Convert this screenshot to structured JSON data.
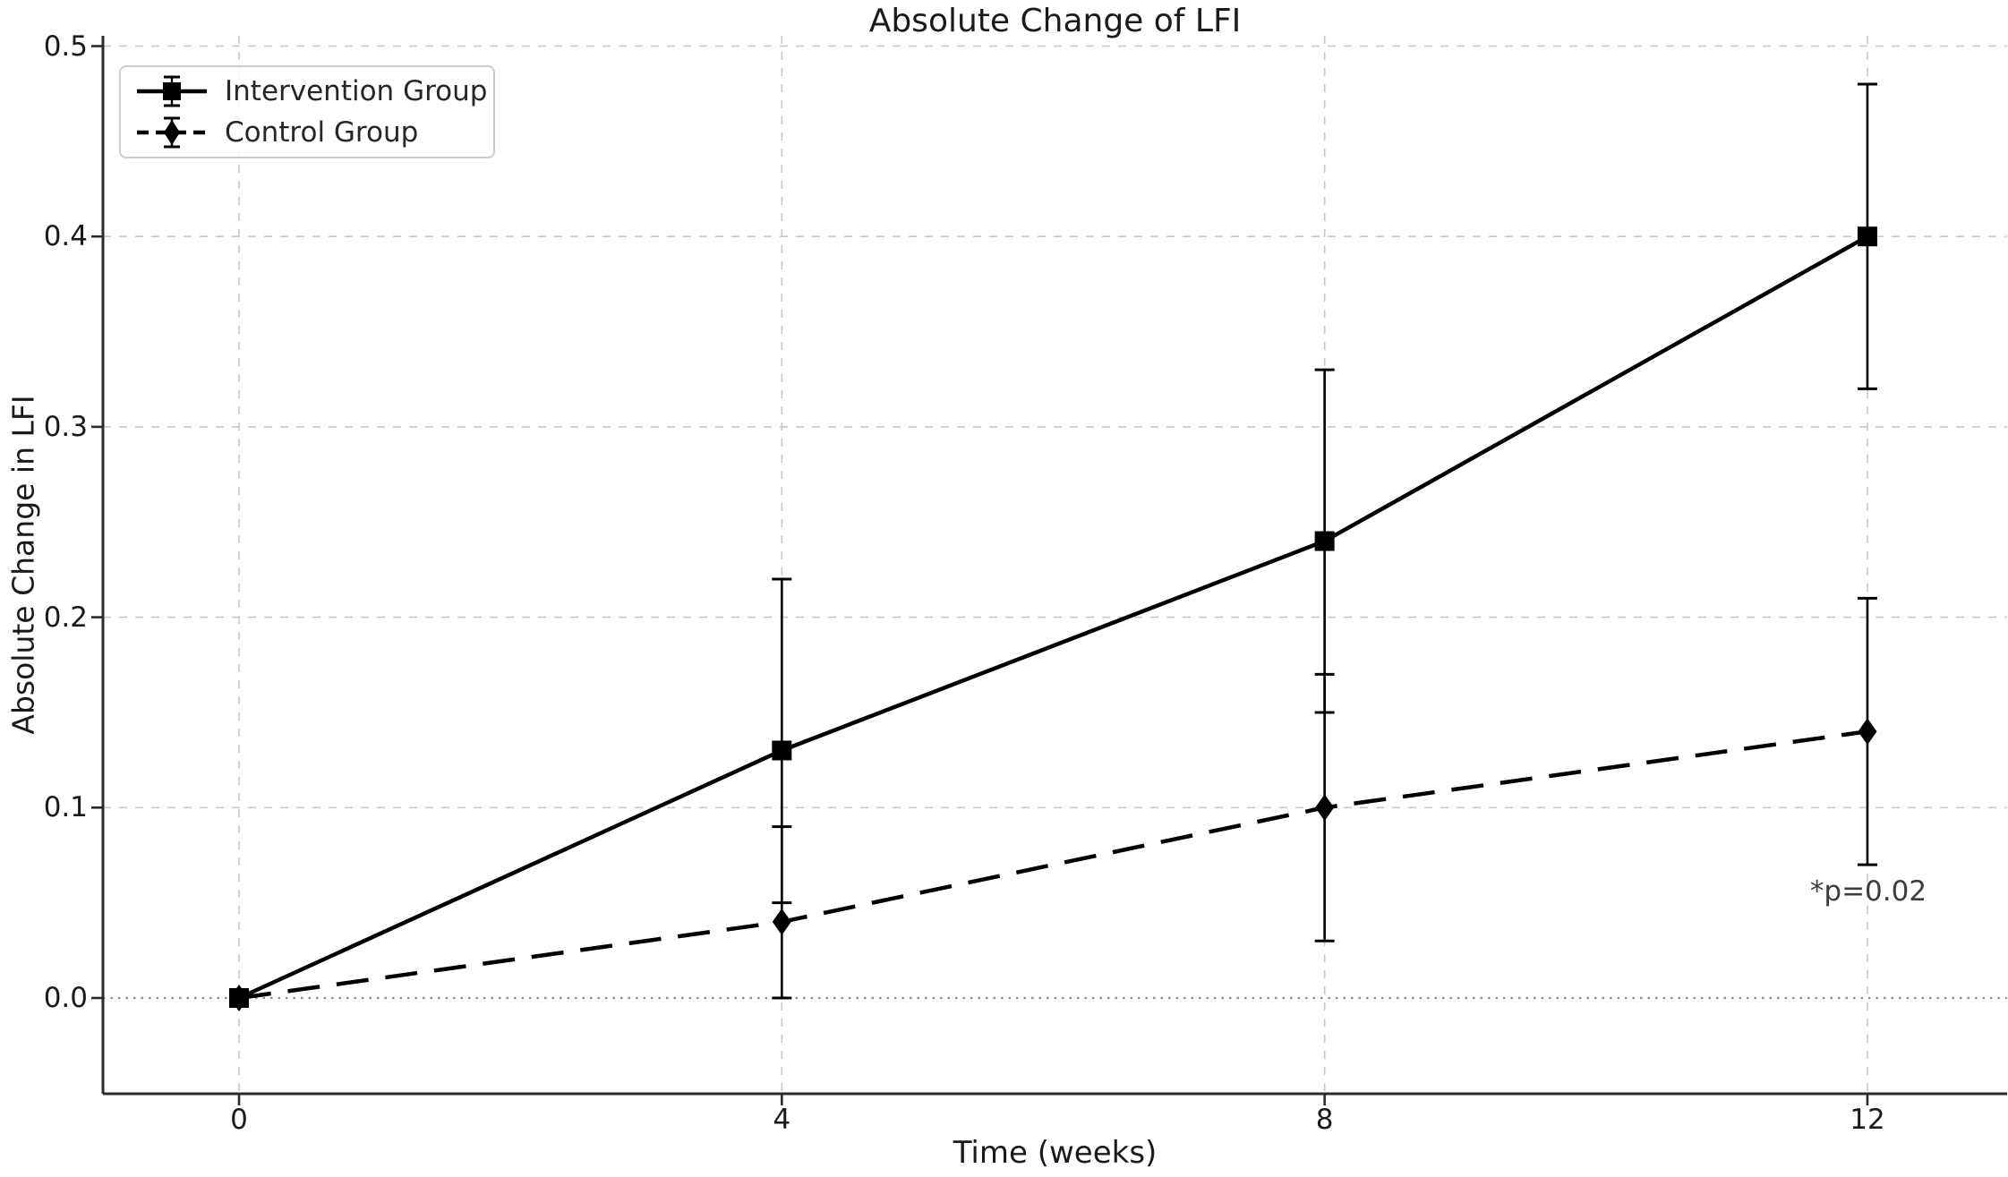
{
  "figure": {
    "title": "Absolute Change of LFI",
    "xlabel": "Time (weeks)",
    "ylabel": "Absolute Change in LFI",
    "annotation": "*p=0.02"
  },
  "legend": {
    "position": "upper left",
    "items": [
      {
        "label": "Intervention Group",
        "marker": "square",
        "line": "solid"
      },
      {
        "label": "Control Group",
        "marker": "diamond",
        "line": "dashed"
      }
    ]
  },
  "colors": {
    "series": "#000000",
    "text": "#1a1a1a",
    "grid": "#c8c8c8",
    "zero_line": "#8f8f8f",
    "spine": "#2b2b2b",
    "legend_border": "#cccccc",
    "annotation": "#3d3d3d",
    "background": "#ffffff"
  },
  "chart_data": {
    "type": "line",
    "title": "Absolute Change of LFI",
    "xlabel": "Time (weeks)",
    "ylabel": "Absolute Change in LFI",
    "x": [
      0,
      4,
      8,
      12
    ],
    "x_tick_labels": [
      "0",
      "4",
      "8",
      "12"
    ],
    "y_ticks": [
      0,
      0.1,
      0.2,
      0.3,
      0.4,
      0.5
    ],
    "y_tick_labels": [
      "0.0",
      "0.1",
      "0.2",
      "0.3",
      "0.4",
      "0.5"
    ],
    "xlim": [
      -1,
      13.05
    ],
    "ylim": [
      -0.05,
      0.505
    ],
    "grid": "dashed",
    "zero_line": true,
    "legend_position": "upper left",
    "series": [
      {
        "name": "Intervention Group",
        "marker": "square",
        "line_style": "solid",
        "values": [
          0.0,
          0.13,
          0.24,
          0.4
        ],
        "err_low": [
          0.0,
          0.05,
          0.15,
          0.32
        ],
        "err_high": [
          0.0,
          0.22,
          0.33,
          0.48
        ]
      },
      {
        "name": "Control Group",
        "marker": "diamond",
        "line_style": "dashed",
        "values": [
          0.0,
          0.04,
          0.1,
          0.14
        ],
        "err_low": [
          0.0,
          0.0,
          0.03,
          0.07
        ],
        "err_high": [
          0.0,
          0.09,
          0.17,
          0.21
        ]
      }
    ],
    "annotation": {
      "text": "*p=0.02",
      "x": 12,
      "y": 0.055
    }
  }
}
